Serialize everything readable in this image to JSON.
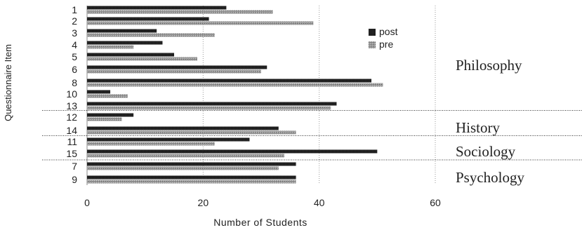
{
  "chart_data": {
    "type": "bar",
    "orientation": "horizontal",
    "xlabel": "Number of Students",
    "ylabel": "Questionnaire Item",
    "xlim": [
      0,
      60
    ],
    "xticks": [
      0,
      20,
      40,
      60
    ],
    "grid": "vertical dotted",
    "legend_position": "top-right",
    "series": [
      {
        "name": "post",
        "color": "#1a1a1a"
      },
      {
        "name": "pre",
        "color": "#8c8c8c"
      }
    ],
    "categories": [
      "1",
      "2",
      "3",
      "4",
      "5",
      "6",
      "8",
      "10",
      "13",
      "12",
      "14",
      "11",
      "15",
      "7",
      "9"
    ],
    "post": [
      24,
      21,
      12,
      13,
      15,
      31,
      49,
      4,
      43,
      8,
      33,
      28,
      50,
      36,
      36
    ],
    "pre": [
      32,
      39,
      22,
      8,
      19,
      30,
      51,
      7,
      42,
      6,
      36,
      22,
      34,
      33,
      36
    ],
    "groups": [
      {
        "label": "Philosophy",
        "items": [
          "1",
          "2",
          "3",
          "4",
          "5",
          "6",
          "8",
          "10",
          "13"
        ]
      },
      {
        "label": "History",
        "items": [
          "12",
          "14"
        ]
      },
      {
        "label": "Sociology",
        "items": [
          "11",
          "15"
        ]
      },
      {
        "label": "Psychology",
        "items": [
          "7",
          "9"
        ]
      }
    ]
  }
}
